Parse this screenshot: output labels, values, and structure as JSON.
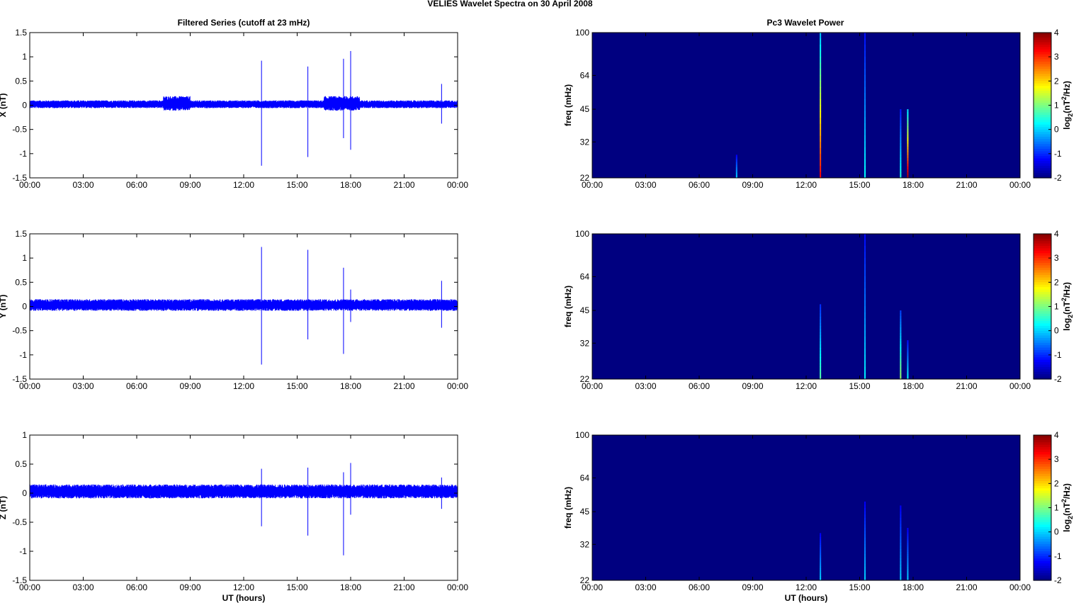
{
  "figure": {
    "title": "VELIES Wavelet Spectra on 30 April     2008",
    "left_title": "Filtered Series (cutoff at 23 mHz)",
    "right_title": "Pc3 Wavelet Power",
    "xlabel": "UT (hours)"
  },
  "chart_data": [
    {
      "type": "line",
      "panel": "X",
      "ylabel": "X (nT)",
      "xlabel": "",
      "xlim": [
        0,
        24
      ],
      "ylim": [
        -1.5,
        1.5
      ],
      "x_ticks": [
        "00:00",
        "03:00",
        "06:00",
        "09:00",
        "12:00",
        "15:00",
        "18:00",
        "21:00",
        "00:00"
      ],
      "y_ticks": [
        "1.5",
        "1",
        "0.5",
        "0",
        "-0.5",
        "-1",
        "-1.5"
      ],
      "color": "#0000ff",
      "noise_amplitude": 0.08,
      "noise_bursts": [
        {
          "start": 7.5,
          "end": 9.0,
          "amplitude": 0.15
        },
        {
          "start": 16.5,
          "end": 18.5,
          "amplitude": 0.15
        }
      ],
      "spikes": [
        {
          "time": 13.0,
          "max": 0.92,
          "min": -1.25
        },
        {
          "time": 15.6,
          "max": 0.8,
          "min": -1.07
        },
        {
          "time": 17.6,
          "max": 0.96,
          "min": -0.68
        },
        {
          "time": 18.0,
          "max": 1.12,
          "min": -0.92
        },
        {
          "time": 23.1,
          "max": 0.44,
          "min": -0.38
        }
      ]
    },
    {
      "type": "line",
      "panel": "Y",
      "ylabel": "Y (nT)",
      "xlabel": "",
      "xlim": [
        0,
        24
      ],
      "ylim": [
        -1.5,
        1.5
      ],
      "x_ticks": [
        "00:00",
        "03:00",
        "06:00",
        "09:00",
        "12:00",
        "15:00",
        "18:00",
        "21:00",
        "00:00"
      ],
      "y_ticks": [
        "1.5",
        "1",
        "0.5",
        "0",
        "-0.5",
        "-1",
        "-1.5"
      ],
      "color": "#0000ff",
      "noise_amplitude": 0.12,
      "noise_bursts": [],
      "spikes": [
        {
          "time": 13.0,
          "max": 1.23,
          "min": -1.2
        },
        {
          "time": 15.6,
          "max": 1.17,
          "min": -0.68
        },
        {
          "time": 17.6,
          "max": 0.8,
          "min": -0.98
        },
        {
          "time": 18.0,
          "max": 0.35,
          "min": -0.32
        },
        {
          "time": 23.1,
          "max": 0.53,
          "min": -0.44
        }
      ]
    },
    {
      "type": "line",
      "panel": "Z",
      "ylabel": "Z (nT)",
      "xlabel": "UT (hours)",
      "xlim": [
        0,
        24
      ],
      "ylim": [
        -1.5,
        1
      ],
      "x_ticks": [
        "00:00",
        "03:00",
        "06:00",
        "09:00",
        "12:00",
        "15:00",
        "18:00",
        "21:00",
        "00:00"
      ],
      "y_ticks": [
        "1",
        "0.5",
        "0",
        "-0.5",
        "-1",
        "-1.5"
      ],
      "color": "#0000ff",
      "noise_amplitude": 0.12,
      "noise_bursts": [],
      "spikes": [
        {
          "time": 13.0,
          "max": 0.42,
          "min": -0.57
        },
        {
          "time": 15.6,
          "max": 0.44,
          "min": -0.73
        },
        {
          "time": 17.6,
          "max": 0.36,
          "min": -1.07
        },
        {
          "time": 18.0,
          "max": 0.52,
          "min": -0.37
        },
        {
          "time": 23.1,
          "max": 0.27,
          "min": -0.27
        }
      ]
    },
    {
      "type": "heatmap",
      "panel": "X",
      "ylabel": "freq (mHz)",
      "xlabel": "",
      "xlim": [
        0,
        24
      ],
      "ylim": [
        22,
        100
      ],
      "y_scale": "log",
      "x_ticks": [
        "00:00",
        "03:00",
        "06:00",
        "09:00",
        "12:00",
        "15:00",
        "18:00",
        "21:00",
        "00:00"
      ],
      "y_ticks": [
        "100",
        "64",
        "45",
        "32",
        "22"
      ],
      "colorbar_label": "log2(nT2/Hz)",
      "colorbar_ticks": [
        "4",
        "3",
        "2",
        "1",
        "0",
        "-1",
        "-2"
      ],
      "clim": [
        -2,
        4
      ],
      "background_value": -2,
      "events": [
        {
          "time": 8.1,
          "fmin": 22,
          "fmax": 28,
          "peak": 0.0
        },
        {
          "time": 12.8,
          "fmin": 22,
          "fmax": 100,
          "peak": 3.3
        },
        {
          "time": 15.3,
          "fmin": 22,
          "fmax": 100,
          "peak": 0.3
        },
        {
          "time": 17.3,
          "fmin": 22,
          "fmax": 45,
          "peak": 0.5
        },
        {
          "time": 17.7,
          "fmin": 22,
          "fmax": 45,
          "peak": 3.8
        }
      ]
    },
    {
      "type": "heatmap",
      "panel": "Y",
      "ylabel": "freq (mHz)",
      "xlabel": "",
      "xlim": [
        0,
        24
      ],
      "ylim": [
        22,
        100
      ],
      "y_scale": "log",
      "x_ticks": [
        "00:00",
        "03:00",
        "06:00",
        "09:00",
        "12:00",
        "15:00",
        "18:00",
        "21:00",
        "00:00"
      ],
      "y_ticks": [
        "100",
        "64",
        "45",
        "32",
        "22"
      ],
      "colorbar_label": "log2(nT2/Hz)",
      "colorbar_ticks": [
        "4",
        "3",
        "2",
        "1",
        "0",
        "-1",
        "-2"
      ],
      "clim": [
        -2,
        4
      ],
      "background_value": -2,
      "events": [
        {
          "time": 12.8,
          "fmin": 22,
          "fmax": 48,
          "peak": 0.8
        },
        {
          "time": 15.3,
          "fmin": 22,
          "fmax": 100,
          "peak": 0.2
        },
        {
          "time": 17.3,
          "fmin": 22,
          "fmax": 45,
          "peak": 1.2
        },
        {
          "time": 17.7,
          "fmin": 22,
          "fmax": 33,
          "peak": 0.3
        }
      ]
    },
    {
      "type": "heatmap",
      "panel": "Z",
      "ylabel": "freq (mHz)",
      "xlabel": "UT (hours)",
      "xlim": [
        0,
        24
      ],
      "ylim": [
        22,
        100
      ],
      "y_scale": "log",
      "x_ticks": [
        "00:00",
        "03:00",
        "06:00",
        "09:00",
        "12:00",
        "15:00",
        "18:00",
        "21:00",
        "00:00"
      ],
      "y_ticks": [
        "100",
        "64",
        "45",
        "32",
        "22"
      ],
      "colorbar_label": "log2(nT2/Hz)",
      "colorbar_ticks": [
        "4",
        "3",
        "2",
        "1",
        "0",
        "-1",
        "-2"
      ],
      "clim": [
        -2,
        4
      ],
      "background_value": -2,
      "events": [
        {
          "time": 12.8,
          "fmin": 22,
          "fmax": 36,
          "peak": 0.0
        },
        {
          "time": 15.3,
          "fmin": 22,
          "fmax": 50,
          "peak": 0.0
        },
        {
          "time": 17.3,
          "fmin": 22,
          "fmax": 48,
          "peak": 0.0
        },
        {
          "time": 17.7,
          "fmin": 22,
          "fmax": 38,
          "peak": 0.0
        }
      ]
    }
  ]
}
